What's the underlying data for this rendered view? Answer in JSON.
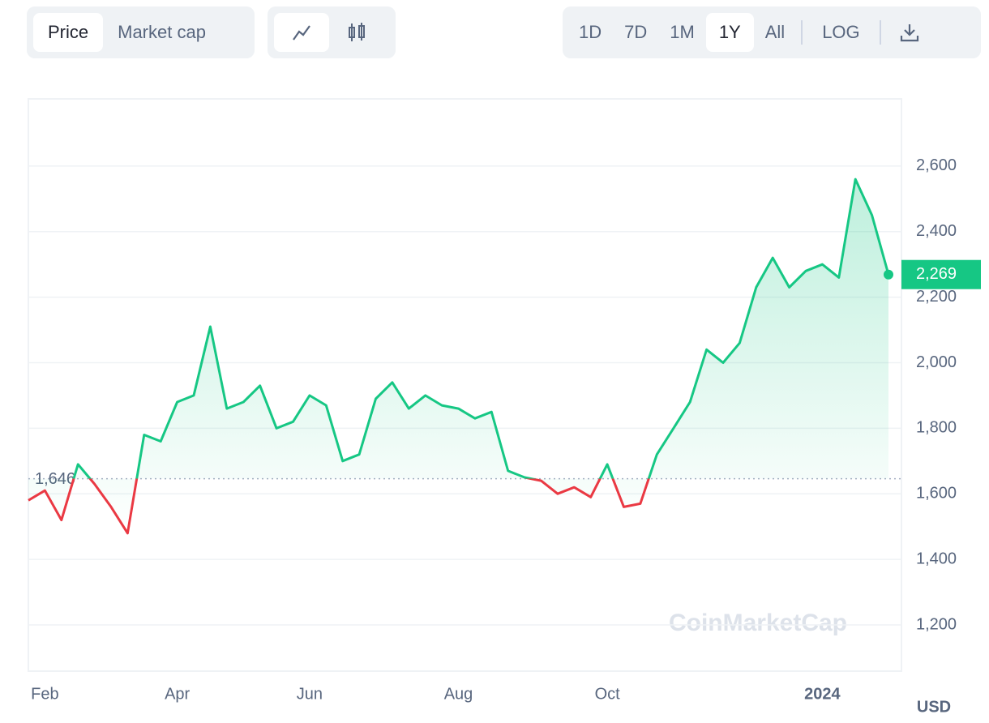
{
  "tabs": [
    "Price",
    "Market cap"
  ],
  "ranges": [
    "1D",
    "7D",
    "1M",
    "1Y",
    "All"
  ],
  "log_button": "LOG",
  "chart_data": {
    "type": "line",
    "unit": "USD",
    "watermark": "CoinMarketCap",
    "categories": [
      null,
      "Feb",
      null,
      null,
      null,
      null,
      null,
      null,
      null,
      "Apr",
      null,
      null,
      null,
      null,
      null,
      null,
      null,
      "Jun",
      null,
      null,
      null,
      null,
      null,
      null,
      null,
      null,
      "Aug",
      null,
      null,
      null,
      null,
      null,
      null,
      null,
      null,
      "Oct",
      null,
      null,
      null,
      null,
      null,
      null,
      null,
      null,
      null,
      null,
      null,
      null,
      "2024",
      null,
      null,
      null,
      null
    ],
    "series": [
      {
        "name": "Price",
        "color": "#16c784",
        "down_color": "#ea3943",
        "values": [
          1580,
          1610,
          1520,
          1690,
          1630,
          1560,
          1480,
          1780,
          1760,
          1880,
          1900,
          2110,
          1860,
          1880,
          1930,
          1800,
          1820,
          1900,
          1870,
          1700,
          1720,
          1890,
          1940,
          1860,
          1900,
          1870,
          1860,
          1830,
          1850,
          1670,
          1650,
          1640,
          1600,
          1620,
          1590,
          1690,
          1560,
          1570,
          1720,
          1800,
          1880,
          2040,
          2000,
          2060,
          2230,
          2320,
          2230,
          2280,
          2300,
          2260,
          2560,
          2450,
          2269
        ],
        "value_labels": [
          null,
          null,
          null,
          null,
          null,
          null,
          null,
          null,
          null,
          null,
          null,
          null,
          null,
          null,
          null,
          null,
          null,
          null,
          null,
          null,
          null,
          null,
          null,
          null,
          null,
          null,
          null,
          null,
          null,
          null,
          null,
          null,
          null,
          null,
          null,
          null,
          null,
          null,
          null,
          null,
          null,
          null,
          null,
          null,
          null,
          null,
          null,
          null,
          null,
          null,
          null,
          null,
          "2,269"
        ]
      }
    ],
    "baseline": {
      "value": 1646,
      "label": "1,646"
    },
    "ylim": [
      1059,
      2805
    ],
    "yticks": [
      {
        "value": 1200,
        "label": "1,200"
      },
      {
        "value": 1400,
        "label": "1,400"
      },
      {
        "value": 1600,
        "label": "1,600"
      },
      {
        "value": 1800,
        "label": "1,800"
      },
      {
        "value": 2000,
        "label": "2,000"
      },
      {
        "value": 2200,
        "label": "2,200"
      },
      {
        "value": 2400,
        "label": "2,400"
      },
      {
        "value": 2600,
        "label": "2,600"
      }
    ],
    "grid": true
  }
}
